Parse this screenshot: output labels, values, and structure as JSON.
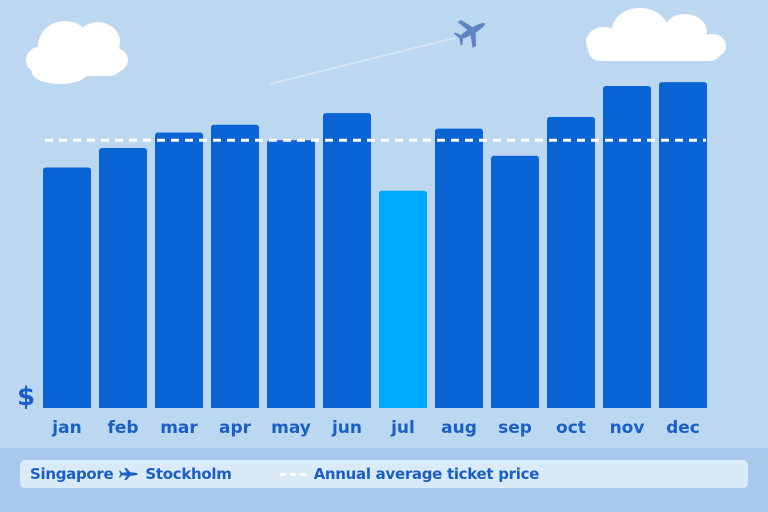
{
  "chart_data": {
    "type": "bar",
    "categories": [
      "jan",
      "feb",
      "mar",
      "apr",
      "may",
      "jun",
      "jul",
      "aug",
      "sep",
      "oct",
      "nov",
      "dec"
    ],
    "values": [
      62,
      67,
      71,
      73,
      69,
      76,
      56,
      72,
      65,
      75,
      83,
      84
    ],
    "highlight_index": 6,
    "average": 69,
    "ylabel": "$",
    "ylim": [
      0,
      100
    ],
    "colors": {
      "bar": "#0a64d6",
      "highlight": "#00aaff",
      "average_line": "#ffffff",
      "text": "#1a5fc7"
    }
  },
  "legend": {
    "origin": "Singapore",
    "destination": "Stockholm",
    "average_label": "Annual average ticket price"
  },
  "icons": [
    "airplane-icon",
    "cloud-icon"
  ]
}
